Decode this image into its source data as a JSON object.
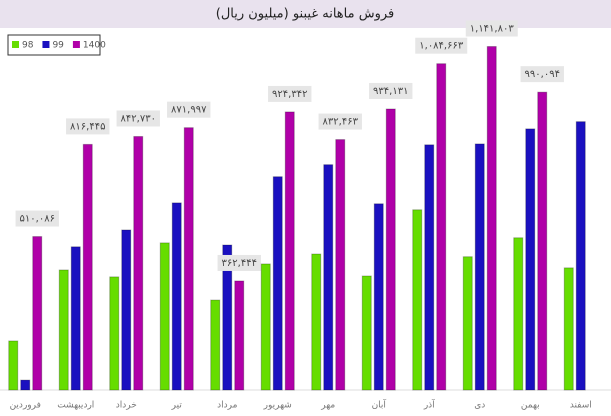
{
  "chart_data": {
    "type": "bar",
    "title": "فروش ماهانه غیبنو (میلیون ریال)",
    "categories": [
      "فروردین",
      "اردیبهشت",
      "خرداد",
      "تیر",
      "مرداد",
      "شهریور",
      "مهر",
      "آبان",
      "آذر",
      "دی",
      "بهمن",
      "اسفند"
    ],
    "series": [
      {
        "name": "98",
        "color": "#66dd00",
        "values": [
          163000,
          399000,
          376000,
          489000,
          299000,
          419000,
          452000,
          379000,
          599000,
          443000,
          506000,
          406000
        ]
      },
      {
        "name": "99",
        "color": "#1a10c0",
        "values": [
          33000,
          476000,
          532000,
          622000,
          482000,
          709000,
          749000,
          619000,
          815000,
          818000,
          868000,
          892000
        ]
      },
      {
        "name": "1400",
        "color": "#b000a8",
        "values": [
          510086,
          816445,
          842730,
          871997,
          362444,
          924342,
          832463,
          934131,
          1084663,
          1141803,
          990094,
          null
        ],
        "value_labels": [
          "۵۱۰,۰۸۶",
          "۸۱۶,۴۴۵",
          "۸۴۲,۷۳۰",
          "۸۷۱,۹۹۷",
          "۳۶۲,۴۴۴",
          "۹۲۴,۳۴۲",
          "۸۳۲,۴۶۳",
          "۹۳۴,۱۳۱",
          "۱,۰۸۴,۶۶۳",
          "۱,۱۴۱,۸۰۳",
          "۹۹۰,۰۹۴",
          null
        ]
      }
    ],
    "ylim": [
      0,
      1200000
    ],
    "legend": "upper left"
  }
}
